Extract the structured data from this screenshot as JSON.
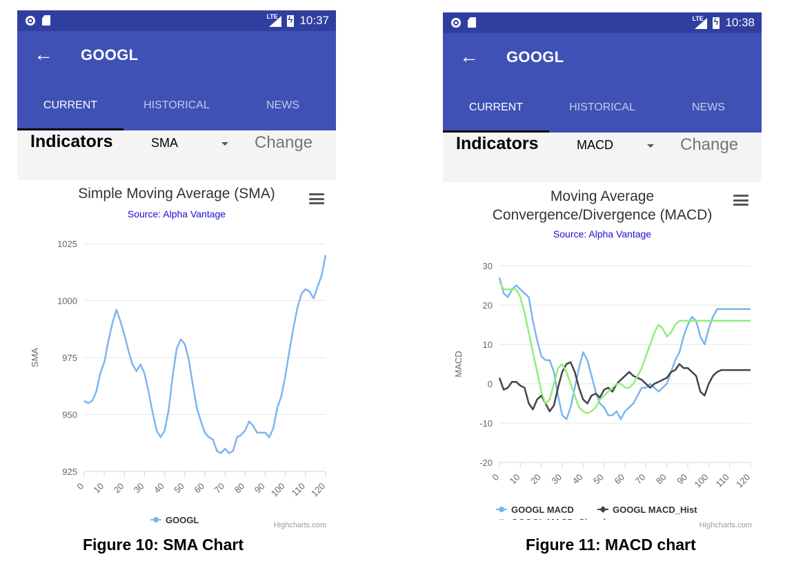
{
  "screens": [
    {
      "status_time": "10:37",
      "lte": "LTE",
      "title": "GOOGL",
      "tabs": [
        "CURRENT",
        "HISTORICAL",
        "NEWS"
      ],
      "indicators_label": "Indicators",
      "selected_indicator": "SMA",
      "change_label": "Change",
      "chart_title": "Simple Moving Average (SMA)",
      "chart_title_line2": "",
      "chart_subtitle": "Source: Alpha Vantage",
      "credits": "Highcharts.com",
      "caption": "Figure 10: SMA Chart",
      "icons": [
        "circle-status-icon",
        "sd-card-icon",
        "lte-signal-icon",
        "battery-charging-icon",
        "back-arrow-icon",
        "dropdown-arrow-icon",
        "hamburger-menu-icon"
      ]
    },
    {
      "status_time": "10:38",
      "lte": "LTE",
      "title": "GOOGL",
      "tabs": [
        "CURRENT",
        "HISTORICAL",
        "NEWS"
      ],
      "indicators_label": "Indicators",
      "selected_indicator": "MACD",
      "change_label": "Change",
      "chart_title": "Moving Average",
      "chart_title_line2": "Convergence/Divergence (MACD)",
      "chart_subtitle": "Source: Alpha Vantage",
      "credits": "Highcharts.com",
      "caption": "Figure 11: MACD chart",
      "icons": [
        "circle-status-icon",
        "sd-card-icon",
        "lte-signal-icon",
        "battery-charging-icon",
        "back-arrow-icon",
        "dropdown-arrow-icon",
        "hamburger-menu-icon"
      ]
    }
  ],
  "colors": {
    "status_bar": "#303f9f",
    "app_bar": "#3f51b5",
    "series_blue": "#7cb5ec",
    "series_black": "#434348",
    "series_green": "#90ed7d",
    "subtitle": "#1a0dcf"
  },
  "chart_data": [
    {
      "type": "line",
      "title": "Simple Moving Average (SMA)",
      "subtitle": "Source: Alpha Vantage",
      "xlabel": "",
      "ylabel": "SMA",
      "xlim": [
        0,
        120
      ],
      "ylim": [
        925,
        1025
      ],
      "x_ticks": [
        "0",
        "10",
        "20",
        "30",
        "40",
        "50",
        "60",
        "70",
        "80",
        "90",
        "100",
        "110",
        "120"
      ],
      "y_ticks": [
        "925",
        "950",
        "975",
        "1000",
        "1025"
      ],
      "grid": true,
      "legend": "bottom-center",
      "series": [
        {
          "name": "GOOGL",
          "color": "#7cb5ec",
          "x": [
            0,
            2,
            4,
            6,
            8,
            10,
            12,
            14,
            16,
            18,
            20,
            22,
            24,
            26,
            28,
            30,
            32,
            34,
            36,
            38,
            40,
            42,
            44,
            46,
            48,
            50,
            52,
            54,
            56,
            58,
            60,
            62,
            64,
            66,
            68,
            70,
            72,
            74,
            76,
            78,
            80,
            82,
            84,
            86,
            88,
            90,
            92,
            94,
            96,
            98,
            100,
            102,
            104,
            106,
            108,
            110,
            112,
            114,
            116,
            118,
            120
          ],
          "y": [
            956,
            955,
            956,
            960,
            968,
            973,
            982,
            990,
            996,
            991,
            985,
            978,
            972,
            969,
            972,
            968,
            960,
            951,
            943,
            940,
            943,
            952,
            967,
            979,
            983,
            981,
            974,
            963,
            953,
            947,
            942,
            940,
            939,
            934,
            933,
            935,
            933,
            934,
            940,
            941,
            943,
            947,
            945,
            942,
            942,
            942,
            940,
            944,
            953,
            958,
            967,
            978,
            988,
            997,
            1003,
            1005,
            1004,
            1001,
            1006,
            1011,
            1020
          ]
        }
      ]
    },
    {
      "type": "line",
      "title": "Moving Average Convergence/Divergence (MACD)",
      "subtitle": "Source: Alpha Vantage",
      "xlabel": "",
      "ylabel": "MACD",
      "xlim": [
        0,
        120
      ],
      "ylim": [
        -20,
        30
      ],
      "x_ticks": [
        "0",
        "10",
        "20",
        "30",
        "40",
        "50",
        "60",
        "70",
        "80",
        "90",
        "100",
        "110",
        "120"
      ],
      "y_ticks": [
        "-20",
        "-10",
        "0",
        "10",
        "20",
        "30"
      ],
      "grid": true,
      "legend": "bottom-center",
      "series": [
        {
          "name": "GOOGL MACD",
          "color": "#7cb5ec",
          "marker": "circle",
          "x": [
            0,
            2,
            4,
            6,
            8,
            10,
            12,
            14,
            16,
            18,
            20,
            22,
            24,
            26,
            28,
            30,
            32,
            34,
            36,
            38,
            40,
            42,
            44,
            46,
            48,
            50,
            52,
            54,
            56,
            58,
            60,
            62,
            64,
            66,
            68,
            70,
            72,
            74,
            76,
            78,
            80,
            82,
            84,
            86,
            88,
            90,
            92,
            94,
            96,
            98,
            100,
            102,
            104,
            106,
            108,
            110,
            112,
            114,
            116,
            118,
            120
          ],
          "y": [
            27,
            23,
            22,
            24,
            25,
            24,
            23,
            22,
            16,
            11,
            7,
            6,
            6,
            3,
            -3,
            -8,
            -9,
            -6,
            -1,
            4,
            8,
            6,
            2,
            -2,
            -5,
            -6,
            -8,
            -8,
            -7,
            -9,
            -7,
            -6,
            -5,
            -3,
            -1,
            -1,
            0,
            -1,
            -2,
            -1,
            0,
            3,
            6,
            8,
            12,
            15,
            17,
            16,
            12,
            10,
            14,
            17,
            19,
            19,
            19,
            19,
            19,
            19,
            19,
            19,
            19
          ]
        },
        {
          "name": "GOOGL MACD_Hist",
          "color": "#434348",
          "marker": "diamond",
          "x": [
            0,
            2,
            4,
            6,
            8,
            10,
            12,
            14,
            16,
            18,
            20,
            22,
            24,
            26,
            28,
            30,
            32,
            34,
            36,
            38,
            40,
            42,
            44,
            46,
            48,
            50,
            52,
            54,
            56,
            58,
            60,
            62,
            64,
            66,
            68,
            70,
            72,
            74,
            76,
            78,
            80,
            82,
            84,
            86,
            88,
            90,
            92,
            94,
            96,
            98,
            100,
            102,
            104,
            106,
            108,
            110,
            112,
            114,
            116,
            118,
            120
          ],
          "y": [
            1.5,
            -1.5,
            -1,
            0.5,
            0.5,
            -0.5,
            -1,
            -5,
            -6.5,
            -4,
            -3,
            -5,
            -7,
            -5.5,
            -1,
            3,
            5,
            5.5,
            3,
            -1,
            -4,
            -5,
            -3,
            -2.5,
            -3.5,
            -1.5,
            -1,
            -2,
            0,
            1,
            2,
            3,
            2,
            1.5,
            1,
            0,
            -1,
            0,
            0.5,
            1,
            1.5,
            3,
            3.5,
            5,
            4,
            4,
            3,
            2,
            -2,
            -3,
            0,
            2,
            3,
            3.5,
            3.5,
            3.5,
            3.5,
            3.5,
            3.5,
            3.5,
            3.5
          ]
        },
        {
          "name": "GOOGL MACD_Signal",
          "color": "#90ed7d",
          "marker": "square",
          "x": [
            0,
            2,
            4,
            6,
            8,
            10,
            12,
            14,
            16,
            18,
            20,
            22,
            24,
            26,
            28,
            30,
            32,
            34,
            36,
            38,
            40,
            42,
            44,
            46,
            48,
            50,
            52,
            54,
            56,
            58,
            60,
            62,
            64,
            66,
            68,
            70,
            72,
            74,
            76,
            78,
            80,
            82,
            84,
            86,
            88,
            90,
            92,
            94,
            96,
            98,
            100,
            102,
            104,
            106,
            108,
            110,
            112,
            114,
            116,
            118,
            120
          ],
          "y": [
            26,
            24,
            24,
            24,
            24,
            22,
            18,
            13,
            8,
            3,
            -2,
            -5,
            -4,
            0,
            4,
            5,
            3,
            0,
            -3,
            -6,
            -7,
            -7.5,
            -7,
            -6,
            -4,
            -3,
            -2,
            -1,
            0,
            0,
            -1,
            -1,
            0,
            2,
            4,
            7,
            10,
            13,
            15,
            14,
            12,
            13,
            15,
            16,
            16,
            16,
            16,
            16,
            16,
            16,
            16,
            16,
            16,
            16,
            16,
            16,
            16,
            16,
            16,
            16,
            16
          ]
        }
      ]
    }
  ]
}
